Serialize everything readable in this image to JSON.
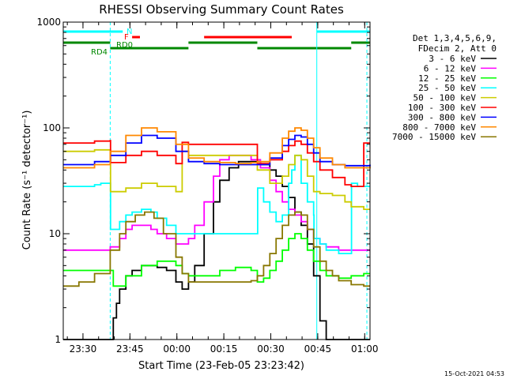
{
  "chart_data": {
    "type": "line",
    "title": "RHESSI Observing Summary Count Rates",
    "xlabel": "Start Time (23-Feb-05 23:23:42)",
    "ylabel": "Count Rate (s⁻¹ detector⁻¹)",
    "x_unit": "minutes since 23:23:42",
    "xlim": [
      0,
      98
    ],
    "ylim": [
      1,
      1000
    ],
    "yscale": "log",
    "x_ticks": [
      {
        "x": 6.3,
        "label": "23:30"
      },
      {
        "x": 21.3,
        "label": "23:45"
      },
      {
        "x": 36.3,
        "label": "00:00"
      },
      {
        "x": 51.3,
        "label": "00:15"
      },
      {
        "x": 66.3,
        "label": "00:30"
      },
      {
        "x": 81.3,
        "label": "00:45"
      },
      {
        "x": 96.3,
        "label": "01:00"
      }
    ],
    "y_ticks": [
      {
        "y": 1,
        "label": "1"
      },
      {
        "y": 10,
        "label": "10"
      },
      {
        "y": 100,
        "label": "100"
      },
      {
        "y": 1000,
        "label": "1000"
      }
    ],
    "legend_header": [
      "Det 1,3,4,5,6,9,",
      "FDecim 2, Att 0"
    ],
    "series": [
      {
        "name": "3 - 6 keV",
        "color": "#000000",
        "x": [
          0,
          10,
          15,
          16,
          17,
          18,
          20,
          22,
          25,
          28,
          30,
          33,
          36,
          38,
          40,
          42,
          45,
          48,
          50,
          53,
          56,
          60,
          63,
          66,
          68,
          70,
          72,
          74,
          76,
          78,
          80,
          82,
          84,
          88,
          92,
          96,
          98
        ],
        "y": [
          1.0,
          1.0,
          1.0,
          1.6,
          2.2,
          3.0,
          4.0,
          4.5,
          5.0,
          5.0,
          4.8,
          4.5,
          3.5,
          3.0,
          3.5,
          5.0,
          10,
          20,
          32,
          42,
          48,
          48,
          45,
          40,
          35,
          28,
          22,
          16,
          12,
          8,
          4,
          1.5,
          1.0,
          1.0,
          1.0,
          1.0,
          1.0
        ]
      },
      {
        "name": "6 - 12 keV",
        "color": "#ff00ff",
        "x": [
          0,
          10,
          15,
          18,
          20,
          22,
          25,
          28,
          30,
          33,
          36,
          38,
          40,
          42,
          45,
          48,
          50,
          53,
          56,
          60,
          63,
          66,
          68,
          70,
          72,
          74,
          76,
          78,
          80,
          82,
          84,
          88,
          92,
          96,
          98
        ],
        "y": [
          7,
          7,
          7.5,
          9,
          11,
          12,
          12,
          11,
          10,
          9,
          8,
          8,
          9,
          12,
          20,
          35,
          50,
          55,
          55,
          50,
          42,
          32,
          25,
          20,
          17,
          15,
          13,
          11,
          9,
          8,
          7.5,
          7,
          7,
          7,
          7
        ]
      },
      {
        "name": "12 - 25 keV",
        "color": "#00ff00",
        "x": [
          0,
          10,
          15,
          16,
          20,
          25,
          30,
          36,
          38,
          40,
          45,
          50,
          55,
          60,
          62,
          64,
          66,
          68,
          70,
          72,
          74,
          76,
          78,
          80,
          82,
          84,
          88,
          92,
          96,
          98
        ],
        "y": [
          4.5,
          4.5,
          4.5,
          3.2,
          4.0,
          5.0,
          5.5,
          5.0,
          4.2,
          4.0,
          4.0,
          4.5,
          4.8,
          4.5,
          3.5,
          3.8,
          4.5,
          5.5,
          7,
          9,
          10,
          9,
          7,
          5.5,
          4.5,
          4.0,
          3.8,
          4.0,
          4.2,
          4.2
        ]
      },
      {
        "name": "25 - 50 keV",
        "color": "#00ffff",
        "x": [
          0,
          5,
          10,
          12,
          15,
          15.1,
          18,
          20,
          22,
          25,
          28,
          30,
          33,
          36,
          38,
          40,
          44,
          48,
          52,
          56,
          60,
          62,
          62.1,
          64,
          66,
          68,
          70,
          72,
          73,
          74,
          76,
          78,
          80,
          80.1,
          82,
          84,
          88,
          92,
          92.1,
          94,
          96,
          98
        ],
        "y": [
          28,
          28,
          29,
          30,
          30,
          11,
          13,
          15,
          16,
          17,
          16,
          14,
          12,
          10,
          10,
          10,
          10,
          10,
          10,
          10,
          10,
          10,
          27,
          20,
          16,
          13,
          15,
          30,
          40,
          55,
          30,
          20,
          15,
          9,
          8,
          7,
          6.5,
          6.5,
          30,
          28,
          28,
          28
        ]
      },
      {
        "name": "50 - 100 keV",
        "color": "#cccc00",
        "x": [
          0,
          10,
          15,
          15.1,
          20,
          25,
          30,
          36,
          38,
          40,
          45,
          50,
          55,
          60,
          62,
          66,
          70,
          72,
          74,
          76,
          78,
          80,
          82,
          86,
          90,
          92,
          96,
          98
        ],
        "y": [
          60,
          62,
          62,
          25,
          27,
          30,
          28,
          25,
          60,
          55,
          55,
          55,
          55,
          55,
          40,
          30,
          35,
          45,
          55,
          50,
          35,
          25,
          24,
          23,
          20,
          18,
          17,
          17
        ]
      },
      {
        "name": "100 - 300 keV",
        "color": "#ff0000",
        "x": [
          0,
          10,
          15,
          15.1,
          20,
          25,
          30,
          36,
          38,
          40,
          45,
          50,
          55,
          60,
          62,
          66,
          70,
          72,
          74,
          76,
          78,
          80,
          82,
          86,
          90,
          92,
          96,
          98
        ],
        "y": [
          72,
          75,
          76,
          47,
          55,
          60,
          55,
          46,
          73,
          70,
          70,
          70,
          70,
          70,
          46,
          50,
          60,
          68,
          75,
          70,
          58,
          48,
          40,
          34,
          29,
          28,
          72,
          72
        ]
      },
      {
        "name": "300 - 800 keV",
        "color": "#0000ff",
        "x": [
          0,
          10,
          15,
          20,
          25,
          30,
          36,
          40,
          45,
          50,
          55,
          60,
          62,
          66,
          70,
          72,
          74,
          76,
          78,
          80,
          82,
          86,
          90,
          92,
          96,
          98
        ],
        "y": [
          45,
          48,
          55,
          72,
          85,
          80,
          60,
          48,
          46,
          45,
          45,
          45,
          45,
          52,
          68,
          78,
          85,
          82,
          70,
          58,
          48,
          45,
          44,
          44,
          44,
          45
        ]
      },
      {
        "name": "800 - 7000 keV",
        "color": "#ff8800",
        "x": [
          0,
          10,
          15,
          20,
          25,
          30,
          36,
          40,
          45,
          50,
          55,
          60,
          62,
          66,
          70,
          72,
          74,
          76,
          78,
          80,
          82,
          86,
          90,
          92,
          96,
          98
        ],
        "y": [
          42,
          45,
          60,
          85,
          100,
          92,
          70,
          52,
          48,
          47,
          46,
          47,
          48,
          58,
          80,
          93,
          100,
          95,
          80,
          65,
          52,
          45,
          42,
          42,
          42,
          43
        ]
      },
      {
        "name": "7000 - 15000 keV",
        "color": "#887700",
        "x": [
          0,
          5,
          10,
          15,
          18,
          20,
          23,
          26,
          29,
          32,
          36,
          38,
          40,
          45,
          50,
          55,
          60,
          62,
          64,
          66,
          68,
          70,
          72,
          74,
          76,
          78,
          80,
          82,
          84,
          86,
          88,
          92,
          96,
          98
        ],
        "y": [
          3.2,
          3.5,
          4.2,
          7,
          10,
          13,
          15,
          16,
          14,
          10,
          6,
          4.2,
          3.5,
          3.5,
          3.5,
          3.5,
          3.6,
          4.0,
          5,
          6.5,
          9,
          12,
          15,
          16,
          15,
          11,
          7.5,
          5.5,
          4.5,
          4.0,
          3.6,
          3.3,
          3.2,
          3.2
        ]
      }
    ],
    "flag_bars": [
      {
        "label": "N",
        "color": "#00ffff",
        "level": 1,
        "segments": [
          [
            0,
            19
          ],
          [
            81,
            98
          ]
        ]
      },
      {
        "label": "F",
        "color": "#ff0000",
        "level": 2,
        "segments": [
          [
            22,
            24.5
          ],
          [
            45,
            73
          ]
        ]
      },
      {
        "label": "RD0",
        "color": "#008800",
        "level": 3,
        "segments": [
          [
            0,
            15
          ],
          [
            40,
            62
          ],
          [
            92,
            98
          ]
        ]
      },
      {
        "label": "RD4",
        "color": "#008800",
        "level": 4,
        "segments": [
          [
            15,
            40
          ],
          [
            62,
            92
          ]
        ]
      }
    ],
    "vertical_markers": [
      {
        "x": 0,
        "style": "solid"
      },
      {
        "x": 15,
        "style": "dashed"
      },
      {
        "x": 81,
        "style": "solid"
      },
      {
        "x": 97,
        "style": "dashed"
      }
    ],
    "footer_date": "15-Oct-2021 04:53",
    "grid": false,
    "legend_position": "right"
  }
}
